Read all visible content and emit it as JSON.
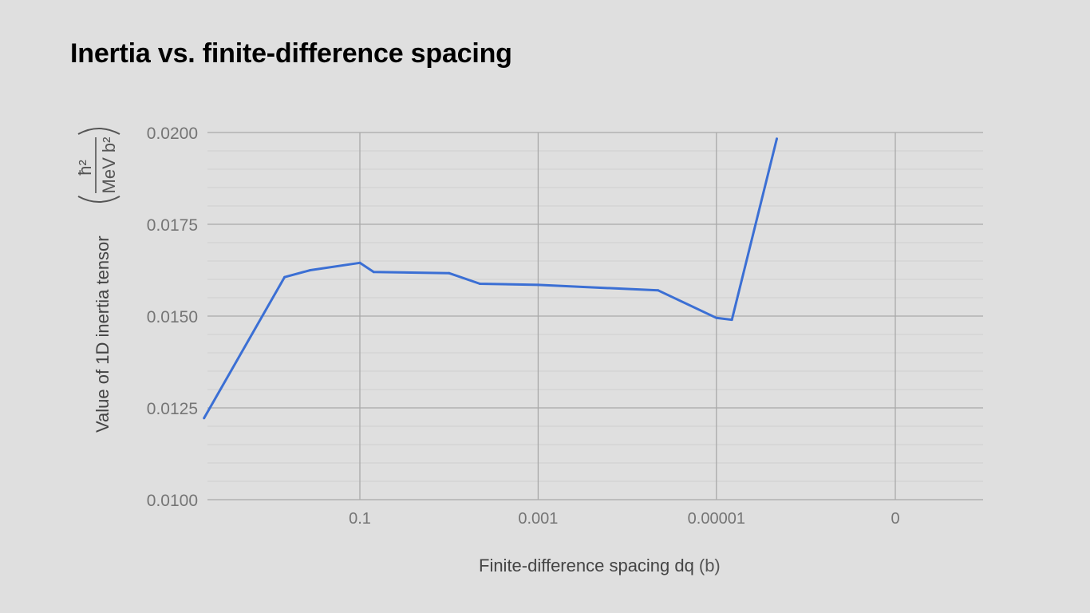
{
  "title": "Inertia vs. finite-difference spacing",
  "chart_data": {
    "type": "line",
    "title": "Inertia vs. finite-difference spacing",
    "xlabel": "Finite-difference spacing dq",
    "xlabel_unit": "(b)",
    "ylabel": "Value of 1D inertia tensor",
    "ylabel_unit_numerator": "ħ²",
    "ylabel_unit_denominator": "MeV b²",
    "x_scale": "log (descending)",
    "x_ticks": [
      "0.1",
      "0.001",
      "0.00001",
      "0"
    ],
    "y_ticks": [
      "0.0200",
      "0.0175",
      "0.0150",
      "0.0125",
      "0.0100"
    ],
    "ylim": [
      0.01,
      0.02
    ],
    "grid": true,
    "series": [
      {
        "color": "#3b6fd4",
        "points": [
          {
            "x": 5.6,
            "y": 0.01222
          },
          {
            "x": 0.7,
            "y": 0.01606
          },
          {
            "x": 0.36,
            "y": 0.01625
          },
          {
            "x": 0.1,
            "y": 0.01645
          },
          {
            "x": 0.07,
            "y": 0.0162
          },
          {
            "x": 0.01,
            "y": 0.01617
          },
          {
            "x": 0.0045,
            "y": 0.01588
          },
          {
            "x": 0.001,
            "y": 0.01585
          },
          {
            "x": 4.5e-05,
            "y": 0.0157
          },
          {
            "x": 1e-05,
            "y": 0.01495
          },
          {
            "x": 6.7e-06,
            "y": 0.0149
          },
          {
            "x": 2.1e-06,
            "y": 0.01983
          }
        ]
      }
    ]
  }
}
